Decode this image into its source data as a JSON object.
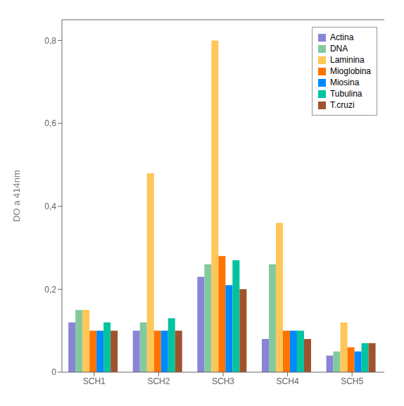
{
  "chart_data": {
    "type": "bar",
    "categories": [
      "SCH1",
      "SCH2",
      "SCH3",
      "SCH4",
      "SCH5"
    ],
    "series": [
      {
        "name": "Actina",
        "color": "#8884d8",
        "values": [
          0.12,
          0.1,
          0.23,
          0.08,
          0.04
        ]
      },
      {
        "name": "DNA",
        "color": "#82ca9d",
        "values": [
          0.15,
          0.12,
          0.26,
          0.26,
          0.05
        ]
      },
      {
        "name": "Laminina",
        "color": "#ffc658",
        "values": [
          0.15,
          0.48,
          0.8,
          0.36,
          0.12
        ]
      },
      {
        "name": "Mioglobina",
        "color": "#ff7300",
        "values": [
          0.1,
          0.1,
          0.28,
          0.1,
          0.06
        ]
      },
      {
        "name": "Miosina",
        "color": "#0088fe",
        "values": [
          0.1,
          0.1,
          0.21,
          0.1,
          0.05
        ]
      },
      {
        "name": "Tubulina",
        "color": "#00c49f",
        "values": [
          0.12,
          0.13,
          0.27,
          0.1,
          0.07
        ]
      },
      {
        "name": "T.cruzi",
        "color": "#a0522d",
        "values": [
          0.1,
          0.1,
          0.2,
          0.08,
          0.07
        ]
      }
    ],
    "ylabel": "DO a 414nm",
    "ylim": [
      0,
      0.85
    ],
    "yticks": [
      0,
      {
        "value": 0.2,
        "label": "0,2"
      },
      {
        "value": 0.4,
        "label": "0,4"
      },
      {
        "value": 0.6,
        "label": "0,6"
      },
      {
        "value": 0.8,
        "label": "0,8"
      }
    ],
    "grid": false,
    "legend": "upper right"
  }
}
